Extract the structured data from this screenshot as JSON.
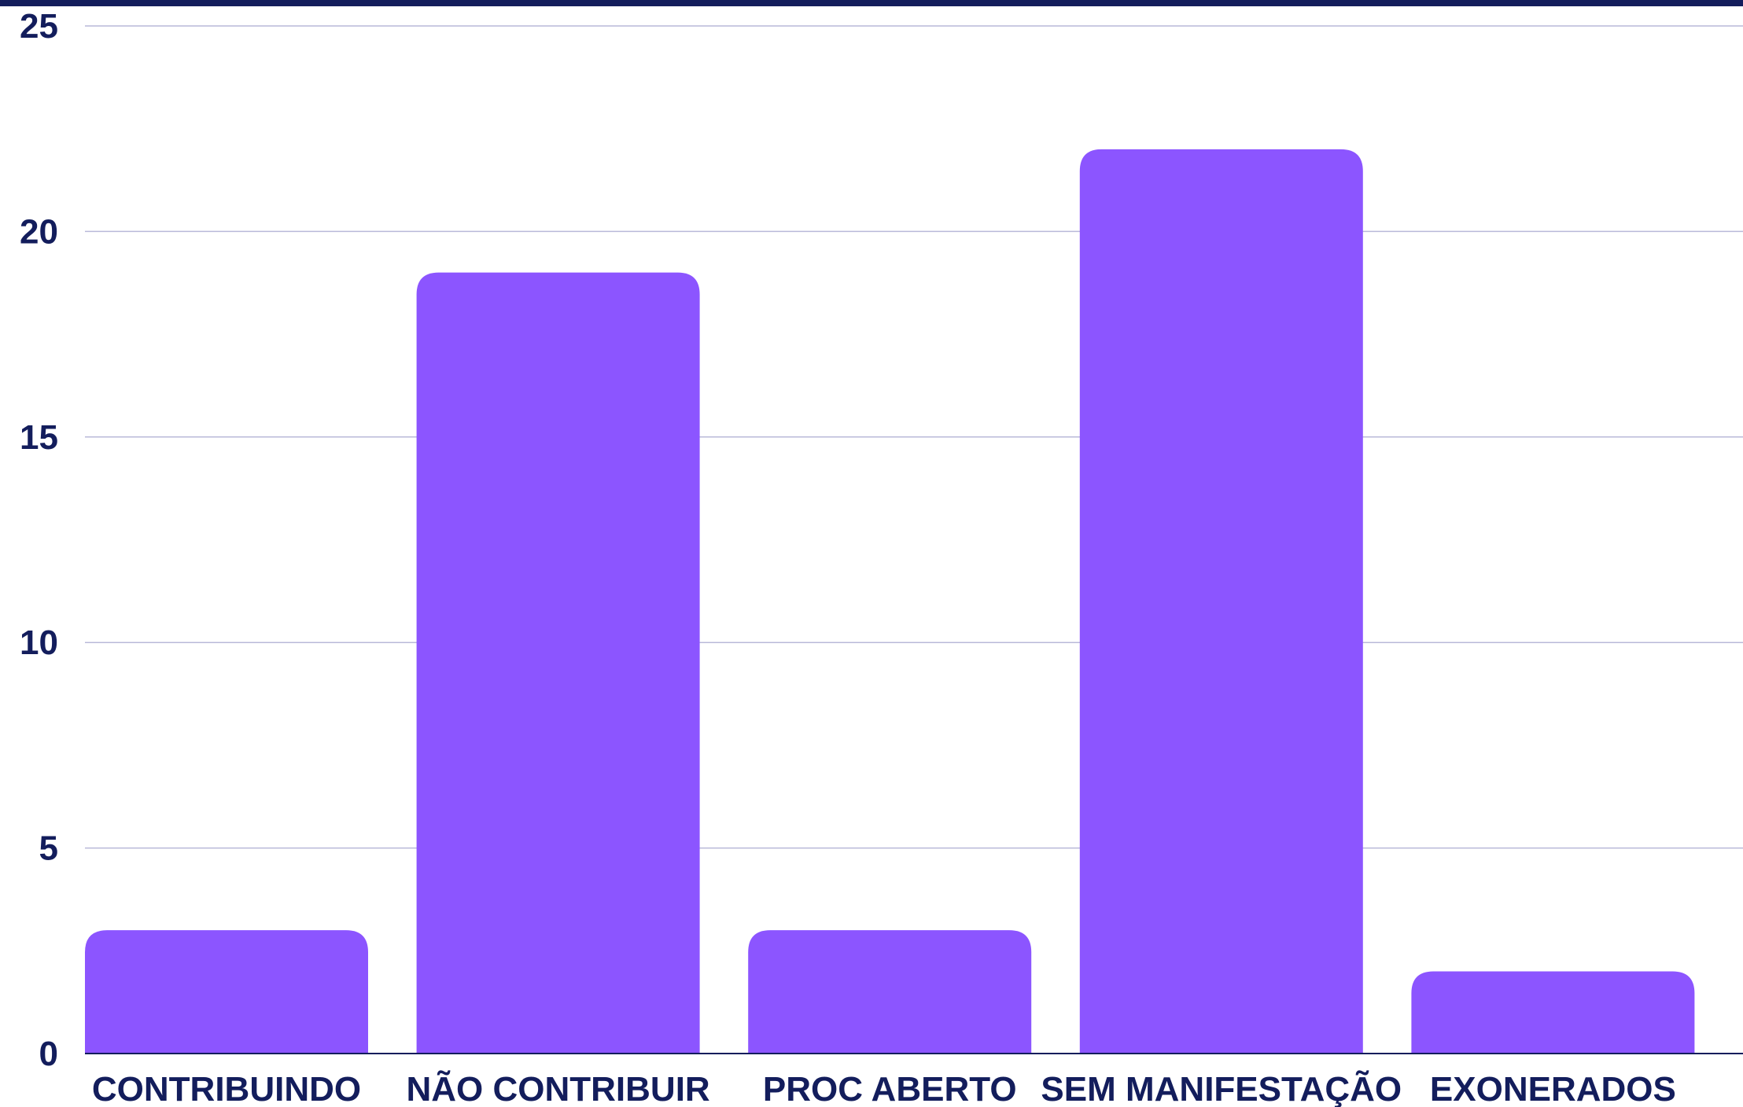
{
  "chart_data": {
    "type": "bar",
    "title": "",
    "xlabel": "",
    "ylabel": "",
    "categories": [
      "CONTRIBUINDO",
      "NÃO CONTRIBUIR",
      "PROC ABERTO",
      "SEM MANIFESTAÇÃO",
      "EXONERADOS"
    ],
    "values": [
      3,
      19,
      3,
      22,
      2
    ],
    "ylim": [
      0,
      25
    ],
    "yticks": [
      "0",
      "5",
      "10",
      "15",
      "20",
      "25"
    ],
    "grid": true,
    "legend": "none",
    "colors": {
      "bar": "#8c55ff",
      "text": "#131d5c",
      "grid": "#b9b9d9",
      "axis": "#131d5c"
    }
  }
}
